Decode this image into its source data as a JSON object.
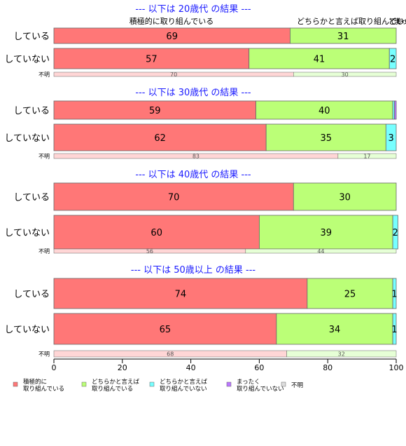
{
  "chart_data": {
    "type": "bar",
    "orientation": "horizontal",
    "stacked": true,
    "xlim": [
      0,
      100
    ],
    "xticks": [
      0,
      20,
      40,
      60,
      80,
      100
    ],
    "top_category_labels": [
      "積極的に取り組んでいる",
      "どちらかと言えば取り組んでいる",
      "どちらかと言えば取り組んでいない",
      "まったく取り組んでいない"
    ],
    "legend": {
      "placement": "bottom-left",
      "entries": [
        {
          "line1": "積極的に",
          "line2": "取り組んでいる",
          "color": "#ff7777"
        },
        {
          "line1": "どちらかと言えば",
          "line2": "取り組んでいる",
          "color": "#bbff77"
        },
        {
          "line1": "どちらかと言えば",
          "line2": "取り組んでいない",
          "color": "#77ffff"
        },
        {
          "line1": "まったく",
          "line2": "取り組んでいない",
          "color": "#bb77ff"
        },
        {
          "line1": "不明",
          "line2": "",
          "color": "#dddddd"
        }
      ]
    },
    "panels": [
      {
        "title": "--- 以下は 20歳代 の結果 ---",
        "rows": [
          {
            "label": "している",
            "values": [
              69,
              31,
              0,
              0
            ],
            "labels": [
              "69",
              "31",
              "",
              ""
            ]
          },
          {
            "label": "していない",
            "values": [
              57,
              41,
              2,
              0
            ],
            "labels": [
              "57",
              "41",
              "2",
              ""
            ]
          },
          {
            "label": "不明",
            "values": [
              70,
              30,
              0,
              0
            ],
            "labels": [
              "70",
              "30",
              "",
              ""
            ],
            "small": true
          }
        ]
      },
      {
        "title": "--- 以下は 30歳代 の結果 ---",
        "rows": [
          {
            "label": "している",
            "values": [
              59,
              40,
              0.5,
              0.5
            ],
            "labels": [
              "59",
              "40",
              "",
              ""
            ]
          },
          {
            "label": "していない",
            "values": [
              62,
              35,
              3,
              0
            ],
            "labels": [
              "62",
              "35",
              "3",
              ""
            ]
          },
          {
            "label": "不明",
            "values": [
              83,
              17,
              0,
              0
            ],
            "labels": [
              "83",
              "17",
              "",
              ""
            ],
            "small": true
          }
        ]
      },
      {
        "title": "--- 以下は 40歳代 の結果 ---",
        "rows": [
          {
            "label": "している",
            "values": [
              70,
              30,
              0,
              0
            ],
            "labels": [
              "70",
              "30",
              "",
              ""
            ]
          },
          {
            "label": "していない",
            "values": [
              60,
              39,
              1.5,
              0
            ],
            "labels": [
              "60",
              "39",
              "2",
              ""
            ]
          },
          {
            "label": "不明",
            "values": [
              56,
              44,
              0,
              0
            ],
            "labels": [
              "56",
              "44",
              "",
              ""
            ],
            "small": true
          }
        ]
      },
      {
        "title": "--- 以下は 50歳以上 の結果 ---",
        "rows": [
          {
            "label": "している",
            "values": [
              74,
              25,
              1,
              0
            ],
            "labels": [
              "74",
              "25",
              "1",
              ""
            ]
          },
          {
            "label": "していない",
            "values": [
              65,
              34,
              1,
              0
            ],
            "labels": [
              "65",
              "34",
              "1",
              ""
            ]
          },
          {
            "label": "不明",
            "values": [
              68,
              32,
              0,
              0
            ],
            "labels": [
              "68",
              "32",
              "",
              ""
            ],
            "small": true
          }
        ]
      }
    ]
  }
}
